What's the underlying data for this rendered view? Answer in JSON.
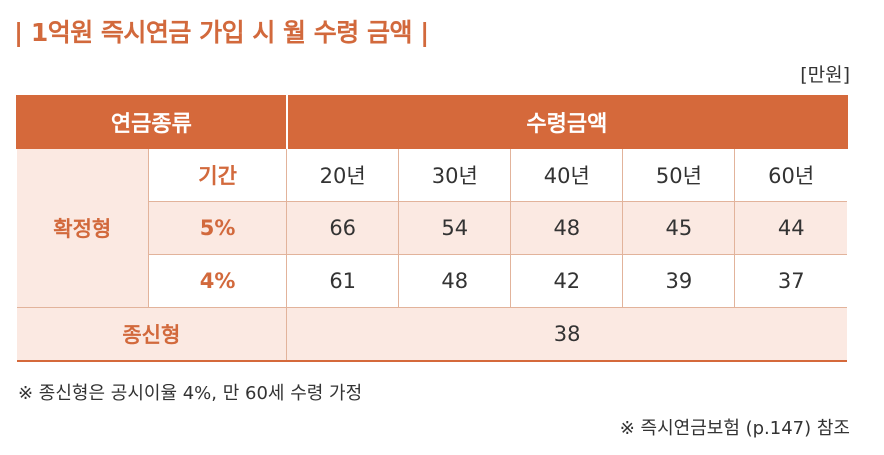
{
  "title": "| 1억원 즉시연금 가입 시 월 수령 금액 |",
  "unit": "[만원]",
  "table": {
    "header": {
      "type": "연금종류",
      "amount": "수령금액"
    },
    "period_label": "기간",
    "periods": [
      "20년",
      "30년",
      "40년",
      "50년",
      "60년"
    ],
    "fixed": {
      "label": "확정형",
      "rows": [
        {
          "rate": "5%",
          "values": [
            "66",
            "54",
            "48",
            "45",
            "44"
          ]
        },
        {
          "rate": "4%",
          "values": [
            "61",
            "48",
            "42",
            "39",
            "37"
          ]
        }
      ]
    },
    "lifetime": {
      "label": "종신형",
      "value": "38"
    }
  },
  "notes": [
    "※ 종신형은 공시이율 4%, 만 60세 수령 가정",
    "※ 즉시연금보험 (p.147) 참조"
  ],
  "colors": {
    "accent": "#d5693b",
    "shade": "#fbe9e2",
    "border": "#e2b39b"
  }
}
